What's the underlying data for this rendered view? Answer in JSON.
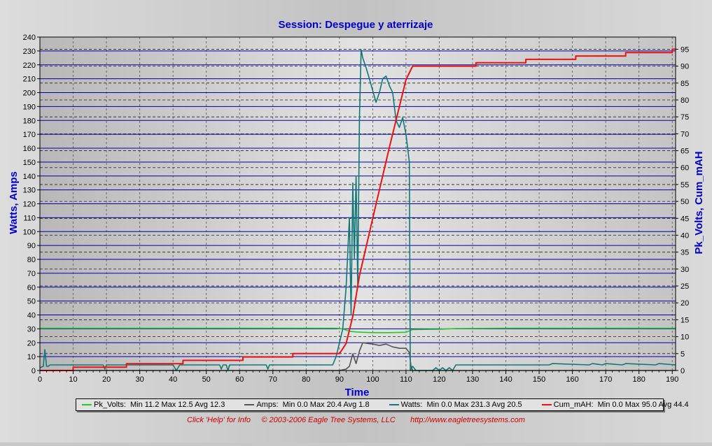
{
  "chart_data": {
    "type": "line",
    "title": "Session: Despegue y aterrizaje",
    "xlabel": "Time",
    "ylabel_left": "Watts, Amps",
    "ylabel_right": "Pk_Volts, Cum_mAH",
    "xlim": [
      0,
      191
    ],
    "ylim_left": [
      0,
      240
    ],
    "ylim_right": [
      0,
      98.6
    ],
    "x_ticks": [
      "0",
      "10",
      "20",
      "30",
      "40",
      "50",
      "60",
      "70",
      "80",
      "90",
      "100",
      "110",
      "120",
      "130",
      "140",
      "150",
      "160",
      "170",
      "180",
      "190"
    ],
    "y_left_ticks": [
      "0",
      "10",
      "20",
      "30",
      "40",
      "50",
      "60",
      "70",
      "80",
      "90",
      "100",
      "110",
      "120",
      "130",
      "140",
      "150",
      "160",
      "170",
      "180",
      "190",
      "200",
      "210",
      "220",
      "230",
      "240"
    ],
    "y_right_ticks": [
      "0",
      "5",
      "10",
      "15",
      "20",
      "25",
      "30",
      "35",
      "40",
      "45",
      "50",
      "55",
      "60",
      "65",
      "70",
      "75",
      "80",
      "85",
      "90",
      "95"
    ],
    "grid": true,
    "legend_position": "bottom",
    "series": [
      {
        "name": "Pk_Volts",
        "axis": "right",
        "color": "#22cc22",
        "legend_text": "Min 11.2 Max 12.5 Avg 12.3",
        "x": [
          0,
          89,
          91,
          93,
          95,
          97,
          100,
          105,
          110,
          112,
          120,
          125,
          140,
          191
        ],
        "y": [
          12.5,
          12.5,
          12.3,
          11.6,
          11.4,
          11.3,
          11.2,
          11.2,
          11.3,
          12.1,
          12.2,
          12.4,
          12.5,
          12.5
        ]
      },
      {
        "name": "Amps",
        "axis": "left",
        "color": "#555555",
        "legend_text": "Min 0.0 Max 20.4 Avg 1.8",
        "x": [
          0,
          90,
          92,
          93,
          94,
          95,
          96,
          97,
          100,
          102,
          104,
          106,
          108,
          110,
          111,
          111.5,
          112,
          191
        ],
        "y": [
          0,
          0,
          1,
          3,
          12,
          5,
          14,
          20,
          19,
          18,
          19,
          17,
          16,
          16,
          13,
          3,
          0,
          0
        ]
      },
      {
        "name": "Watts",
        "axis": "left",
        "color": "#117777",
        "legend_text": "Min 0.0 Max 231.3 Avg 20.5",
        "x": [
          0,
          1,
          1.5,
          2,
          2.5,
          3,
          10,
          19,
          19.5,
          20,
          40,
          41,
          42,
          54,
          54.5,
          55,
          56,
          56.5,
          57,
          68,
          68.5,
          69,
          88,
          89,
          90,
          91,
          92,
          93,
          93.5,
          94,
          94.5,
          95,
          95.5,
          96,
          96.5,
          97,
          98,
          99,
          101,
          102,
          103,
          104,
          105,
          106,
          107,
          108,
          109,
          110,
          111,
          111.3,
          112,
          113,
          118,
          119,
          120,
          121,
          122,
          123,
          124,
          125,
          130,
          153,
          154,
          165,
          166,
          169,
          170,
          175,
          176,
          185,
          186,
          191
        ],
        "y": [
          2,
          3,
          15,
          3,
          3,
          4,
          4,
          4,
          1,
          4,
          4,
          0,
          4,
          4,
          1,
          4,
          4,
          0,
          4,
          4,
          1,
          4,
          4,
          10,
          20,
          30,
          60,
          110,
          40,
          135,
          80,
          140,
          60,
          180,
          231,
          225,
          218,
          210,
          193,
          200,
          210,
          212,
          205,
          200,
          180,
          175,
          182,
          170,
          150,
          0,
          3,
          0,
          0,
          2,
          0,
          2,
          0,
          2,
          0,
          4,
          4,
          4,
          5,
          4,
          5,
          4,
          5,
          4,
          5,
          4,
          5,
          4
        ]
      },
      {
        "name": "Cum_mAH",
        "axis": "right",
        "color": "#ee1111",
        "legend_text": "Min 0.0 Max 95.0 Avg 44.4",
        "x": [
          0,
          10,
          10,
          26,
          26,
          43,
          43,
          61,
          61,
          76,
          76,
          90,
          92,
          94,
          96,
          100,
          105,
          110,
          112,
          131,
          131,
          146,
          146,
          161,
          161,
          176,
          176,
          190,
          190,
          191
        ],
        "y": [
          0,
          0,
          1,
          1,
          2,
          2,
          3,
          3,
          4,
          4,
          5,
          5,
          8,
          16,
          28,
          45,
          66,
          86,
          90,
          90,
          91,
          91,
          92,
          92,
          93,
          93,
          94,
          94,
          95,
          95
        ]
      }
    ]
  },
  "legend": {
    "items": [
      {
        "name": "Pk_Volts:",
        "text": "Min 11.2 Max 12.5 Avg 12.3",
        "color": "#22cc22"
      },
      {
        "name": "Amps:",
        "text": "Min 0.0 Max 20.4 Avg 1.8",
        "color": "#555555"
      },
      {
        "name": "Watts:",
        "text": "Min 0.0 Max 231.3 Avg 20.5",
        "color": "#117777"
      },
      {
        "name": "Cum_mAH:",
        "text": "Min 0.0 Max 95.0 Avg 44.4",
        "color": "#ee1111"
      }
    ]
  },
  "footer": {
    "help": "Click 'Help' for Info",
    "copyright": "© 2003-2006 Eagle Tree Systems, LLC",
    "url": "http://www.eagletreesystems.com"
  },
  "colors": {
    "title": "#0000cc",
    "axis_label": "#0000cc",
    "grid_major": "#0000aa",
    "grid_minor": "#333333",
    "footer": "#cc0000"
  }
}
